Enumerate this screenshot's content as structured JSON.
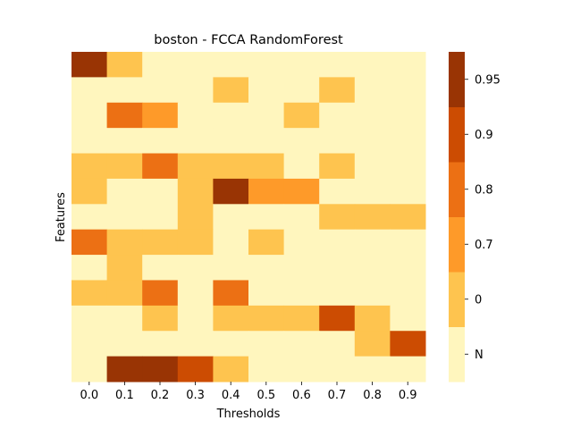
{
  "chart_data": {
    "type": "heatmap",
    "title": "boston - FCCA RandomForest",
    "xlabel": "Thresholds",
    "ylabel": "Features",
    "x_categories": [
      "0.0",
      "0.1",
      "0.2",
      "0.3",
      "0.4",
      "0.5",
      "0.6",
      "0.7",
      "0.8",
      "0.9"
    ],
    "row_count": 13,
    "legend_position": "right",
    "colorbar": {
      "ticks": [
        "N",
        "0",
        "0.7",
        "0.8",
        "0.9",
        "0.95"
      ],
      "levels": [
        {
          "value": "N",
          "color": "#fff6be"
        },
        {
          "value": "0",
          "color": "#fec44f"
        },
        {
          "value": "0.7",
          "color": "#fe9a29"
        },
        {
          "value": "0.8",
          "color": "#ec7014"
        },
        {
          "value": "0.9",
          "color": "#cc4c02"
        },
        {
          "value": "0.95",
          "color": "#993404"
        }
      ]
    },
    "matrix": [
      [
        5,
        1,
        0,
        0,
        0,
        0,
        0,
        0,
        0,
        0
      ],
      [
        0,
        0,
        0,
        0,
        1,
        0,
        0,
        1,
        0,
        0
      ],
      [
        0,
        3,
        2,
        0,
        0,
        0,
        1,
        0,
        0,
        0
      ],
      [
        0,
        0,
        0,
        0,
        0,
        0,
        0,
        0,
        0,
        0
      ],
      [
        1,
        1,
        3,
        1,
        1,
        1,
        0,
        1,
        0,
        0
      ],
      [
        1,
        0,
        0,
        1,
        5,
        2,
        2,
        0,
        0,
        0
      ],
      [
        0,
        0,
        0,
        1,
        0,
        0,
        0,
        1,
        1,
        1
      ],
      [
        3,
        1,
        1,
        1,
        0,
        1,
        0,
        0,
        0,
        0
      ],
      [
        0,
        1,
        0,
        0,
        0,
        0,
        0,
        0,
        0,
        0
      ],
      [
        1,
        1,
        3,
        0,
        3,
        0,
        0,
        0,
        0,
        0
      ],
      [
        0,
        0,
        1,
        0,
        1,
        1,
        1,
        4,
        1,
        0
      ],
      [
        0,
        0,
        0,
        0,
        0,
        0,
        0,
        0,
        1,
        4
      ],
      [
        0,
        5,
        5,
        4,
        1,
        0,
        0,
        0,
        0,
        0
      ]
    ]
  }
}
